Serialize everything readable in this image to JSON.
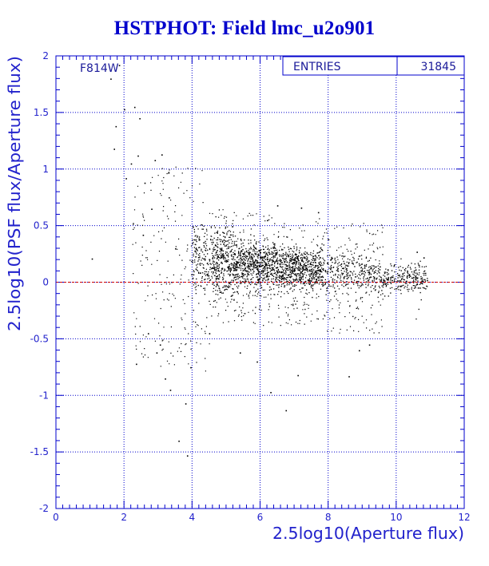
{
  "title": "HSTPHOT: Field lmc_u2o901",
  "filter_label": "F814W",
  "stats": {
    "label": "ENTRIES",
    "value": "31845"
  },
  "colors": {
    "axis": "#0000cc",
    "grid": "#0000cc",
    "points": "#000000",
    "reference_line": "#cc0000"
  },
  "chart_data": {
    "type": "scatter",
    "title": "HSTPHOT: Field lmc_u2o901",
    "xlabel": "2.5log10(Aperture flux)",
    "ylabel": "2.5log10(PSF flux/Aperture flux)",
    "xlim": [
      0,
      12
    ],
    "ylim": [
      -2,
      2
    ],
    "x_ticks": [
      "0",
      "2",
      "4",
      "6",
      "8",
      "10",
      "12"
    ],
    "y_ticks": [
      "2",
      "1.5",
      "1",
      "0.5",
      "0",
      "-0.5",
      "-1",
      "-1.5",
      "-2"
    ],
    "grid": true,
    "reference_line_y": 0,
    "entries": 31845,
    "sampled_points": [
      [
        1.05,
        0.21
      ],
      [
        1.6,
        1.8
      ],
      [
        1.75,
        1.38
      ],
      [
        1.85,
        1.92
      ],
      [
        1.7,
        1.18
      ],
      [
        2.0,
        1.53
      ],
      [
        2.3,
        1.55
      ],
      [
        2.45,
        1.45
      ],
      [
        2.2,
        1.05
      ],
      [
        2.05,
        0.92
      ],
      [
        2.4,
        1.12
      ],
      [
        2.6,
        0.88
      ],
      [
        2.9,
        1.08
      ],
      [
        3.1,
        1.13
      ],
      [
        3.3,
        0.97
      ],
      [
        2.35,
        -0.72
      ],
      [
        3.05,
        -0.55
      ],
      [
        2.95,
        -0.62
      ],
      [
        3.2,
        -0.85
      ],
      [
        3.35,
        -0.95
      ],
      [
        3.8,
        -1.07
      ],
      [
        3.85,
        -1.53
      ],
      [
        3.6,
        -1.4
      ],
      [
        3.95,
        -0.75
      ],
      [
        6.75,
        -1.13
      ],
      [
        6.3,
        -0.97
      ],
      [
        7.1,
        -0.82
      ],
      [
        8.6,
        -0.83
      ],
      [
        9.2,
        -0.55
      ],
      [
        8.9,
        -0.6
      ],
      [
        5.4,
        -0.62
      ],
      [
        5.9,
        -0.7
      ],
      [
        4.5,
        -0.45
      ],
      [
        6.5,
        0.68
      ],
      [
        7.2,
        0.66
      ],
      [
        7.7,
        0.62
      ],
      [
        6.2,
        0.55
      ],
      [
        10.9,
        0.02
      ],
      [
        10.6,
        0.27
      ],
      [
        10.8,
        0.22
      ],
      [
        2.8,
        0.65
      ],
      [
        2.55,
        0.42
      ],
      [
        3.5,
        0.3
      ],
      [
        2.7,
        -0.45
      ]
    ]
  }
}
